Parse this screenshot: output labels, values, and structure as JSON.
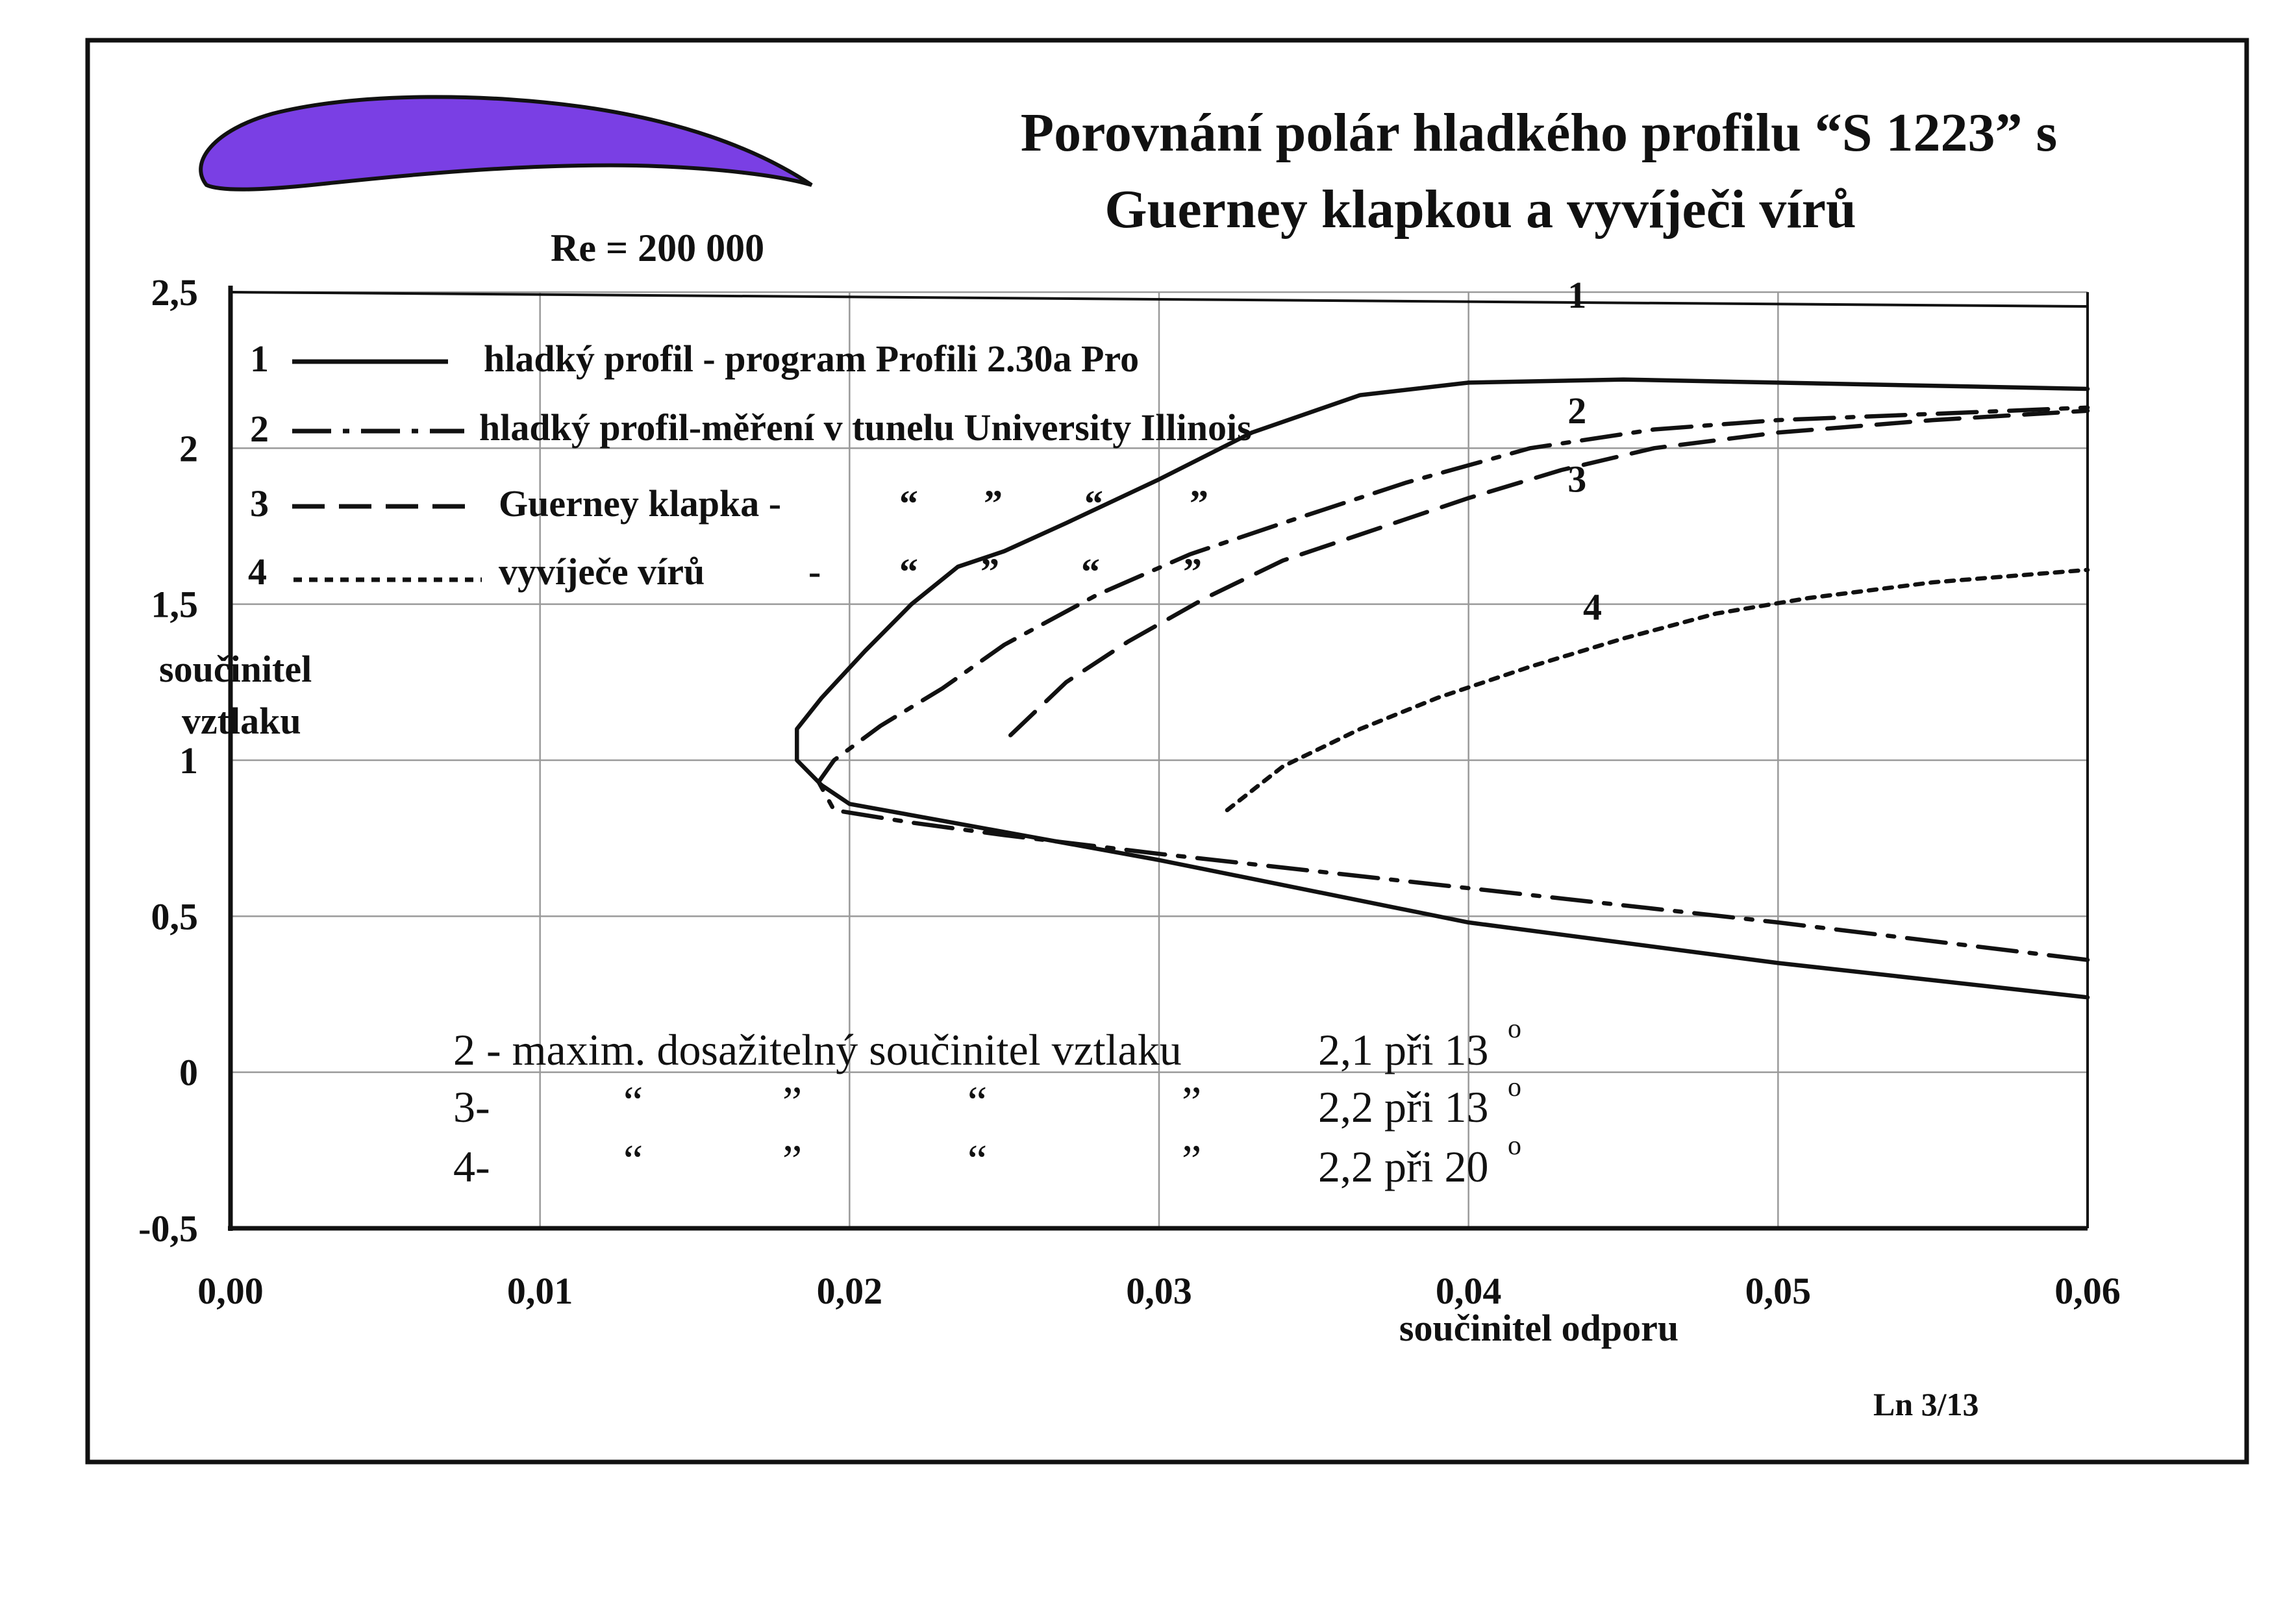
{
  "title_line1": "Porovnání polár hladkého profilu “S 1223” s",
  "title_line2": "Guerney klapkou a vyvíječi vírů",
  "reynolds": "Re = 200 000",
  "page_ref": "Ln 3/13",
  "colors": {
    "airfoil_fill": "#7a3fe4",
    "ink": "#111111",
    "grid": "#9a9a9a"
  },
  "legend": [
    {
      "num": "1",
      "label": "hladký profil - program Profili 2.30a Pro"
    },
    {
      "num": "2",
      "label": "hladký profil-měření v tunelu University Illinois"
    },
    {
      "num": "3",
      "label": "Guerney klapka -",
      "marks": [
        "“",
        "”",
        "“",
        "”"
      ]
    },
    {
      "num": "4",
      "label": "vyvíječe vírů",
      "dash": "-",
      "marks": [
        "“",
        "”",
        "“",
        "”"
      ]
    }
  ],
  "notes": [
    {
      "prefix": "2 - maxim. dosažitelný součinitel vztlaku",
      "marks": [],
      "value": "2,1 při 13",
      "unit": "o"
    },
    {
      "prefix": "3-",
      "marks": [
        "“",
        "”",
        "“",
        "”"
      ],
      "value": "2,2 při 13",
      "unit": "o"
    },
    {
      "prefix": "4-",
      "marks": [
        "“",
        "”",
        "“",
        "”"
      ],
      "value": "2,2 při 20",
      "unit": "o"
    }
  ],
  "chart_data": {
    "type": "line",
    "xlabel": "součinitel  odporu",
    "ylabel_line1": "součinitel",
    "ylabel_line2": "vztlaku",
    "xlim": [
      0,
      0.06
    ],
    "ylim": [
      -0.5,
      2.5
    ],
    "x_ticks": [
      0,
      0.01,
      0.02,
      0.03,
      0.04,
      0.05,
      0.06
    ],
    "x_tick_labels": [
      "0,00",
      "0,01",
      "0,02",
      "0,03",
      "0,04",
      "0,05",
      "0,06"
    ],
    "y_ticks": [
      -0.5,
      0,
      0.5,
      1,
      1.5,
      2,
      2.5
    ],
    "y_tick_labels": [
      "-0,5",
      "0",
      "0,5",
      "1",
      "1,5",
      "2",
      "2,5"
    ],
    "grid": true,
    "legend_position": "top-left",
    "series": [
      {
        "name": "1",
        "style": "solid",
        "points": [
          [
            0.06,
            0.24
          ],
          [
            0.05,
            0.35
          ],
          [
            0.04,
            0.48
          ],
          [
            0.03,
            0.68
          ],
          [
            0.025,
            0.77
          ],
          [
            0.02,
            0.86
          ],
          [
            0.0191,
            0.92
          ],
          [
            0.0183,
            1.0
          ],
          [
            0.0183,
            1.1
          ],
          [
            0.0191,
            1.2
          ],
          [
            0.0205,
            1.35
          ],
          [
            0.022,
            1.5
          ],
          [
            0.0235,
            1.62
          ],
          [
            0.025,
            1.67
          ],
          [
            0.027,
            1.76
          ],
          [
            0.03,
            1.9
          ],
          [
            0.033,
            2.05
          ],
          [
            0.0365,
            2.17
          ],
          [
            0.04,
            2.21
          ],
          [
            0.045,
            2.22
          ],
          [
            0.05,
            2.21
          ],
          [
            0.06,
            2.19
          ]
        ]
      },
      {
        "name": "2",
        "style": "dashdot",
        "points": [
          [
            0.06,
            0.36
          ],
          [
            0.05,
            0.48
          ],
          [
            0.04,
            0.59
          ],
          [
            0.03,
            0.7
          ],
          [
            0.025,
            0.76
          ],
          [
            0.022,
            0.8
          ],
          [
            0.0195,
            0.84
          ],
          [
            0.019,
            0.93
          ],
          [
            0.0195,
            1.0
          ],
          [
            0.021,
            1.11
          ],
          [
            0.023,
            1.23
          ],
          [
            0.025,
            1.37
          ],
          [
            0.028,
            1.53
          ],
          [
            0.031,
            1.66
          ],
          [
            0.034,
            1.76
          ],
          [
            0.038,
            1.89
          ],
          [
            0.042,
            2.0
          ],
          [
            0.046,
            2.06
          ],
          [
            0.05,
            2.09
          ],
          [
            0.055,
            2.11
          ],
          [
            0.06,
            2.13
          ]
        ]
      },
      {
        "name": "3",
        "style": "dashed",
        "points": [
          [
            0.0252,
            1.08
          ],
          [
            0.027,
            1.25
          ],
          [
            0.029,
            1.38
          ],
          [
            0.0315,
            1.52
          ],
          [
            0.034,
            1.64
          ],
          [
            0.037,
            1.74
          ],
          [
            0.04,
            1.84
          ],
          [
            0.043,
            1.93
          ],
          [
            0.046,
            2.0
          ],
          [
            0.05,
            2.05
          ],
          [
            0.055,
            2.09
          ],
          [
            0.06,
            2.12
          ]
        ]
      },
      {
        "name": "4",
        "style": "dotted",
        "points": [
          [
            0.0322,
            0.84
          ],
          [
            0.034,
            0.98
          ],
          [
            0.0365,
            1.1
          ],
          [
            0.039,
            1.2
          ],
          [
            0.042,
            1.3
          ],
          [
            0.045,
            1.39
          ],
          [
            0.048,
            1.47
          ],
          [
            0.051,
            1.52
          ],
          [
            0.055,
            1.57
          ],
          [
            0.06,
            1.61
          ]
        ]
      }
    ]
  }
}
